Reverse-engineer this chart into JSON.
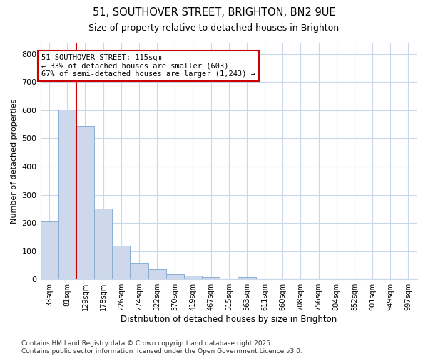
{
  "title1": "51, SOUTHOVER STREET, BRIGHTON, BN2 9UE",
  "title2": "Size of property relative to detached houses in Brighton",
  "xlabel": "Distribution of detached houses by size in Brighton",
  "ylabel": "Number of detached properties",
  "categories": [
    "33sqm",
    "81sqm",
    "129sqm",
    "178sqm",
    "226sqm",
    "274sqm",
    "322sqm",
    "370sqm",
    "419sqm",
    "467sqm",
    "515sqm",
    "563sqm",
    "611sqm",
    "660sqm",
    "708sqm",
    "756sqm",
    "804sqm",
    "852sqm",
    "901sqm",
    "949sqm",
    "997sqm"
  ],
  "values": [
    205,
    603,
    545,
    252,
    120,
    55,
    35,
    18,
    12,
    8,
    0,
    8,
    0,
    0,
    0,
    0,
    0,
    0,
    0,
    0,
    0
  ],
  "bar_color": "#cdd8ec",
  "bar_edge_color": "#8aaed4",
  "vline_x_index": 1.5,
  "vline_color": "#cc0000",
  "annotation_text": "51 SOUTHOVER STREET: 115sqm\n← 33% of detached houses are smaller (603)\n67% of semi-detached houses are larger (1,243) →",
  "annotation_box_color": "white",
  "annotation_box_edge_color": "#cc0000",
  "ylim": [
    0,
    840
  ],
  "yticks": [
    0,
    100,
    200,
    300,
    400,
    500,
    600,
    700,
    800
  ],
  "background_color": "#ffffff",
  "grid_color": "#c8d8e8",
  "footnote": "Contains HM Land Registry data © Crown copyright and database right 2025.\nContains public sector information licensed under the Open Government Licence v3.0."
}
